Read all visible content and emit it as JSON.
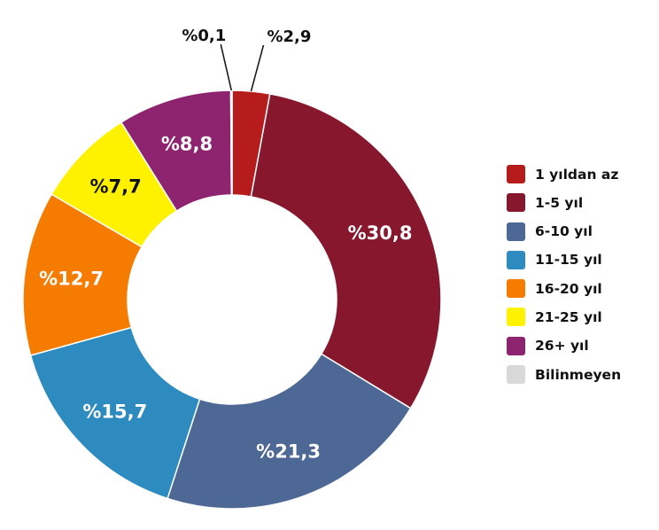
{
  "chart_data": {
    "type": "pie",
    "variant": "donut",
    "legend_position": "right",
    "series": [
      {
        "name": "1 yıldan az",
        "value": 2.9,
        "label": "%2,9",
        "color": "#B71C1C",
        "label_color": "#111111",
        "label_placement": "outside"
      },
      {
        "name": "1-5 yıl",
        "value": 30.8,
        "label": "%30,8",
        "color": "#86172D",
        "label_color": "#FFFFFF",
        "label_placement": "inside"
      },
      {
        "name": "6-10 yıl",
        "value": 21.3,
        "label": "%21,3",
        "color": "#4E6896",
        "label_color": "#FFFFFF",
        "label_placement": "inside"
      },
      {
        "name": "11-15 yıl",
        "value": 15.7,
        "label": "%15,7",
        "color": "#2E8BC0",
        "label_color": "#FFFFFF",
        "label_placement": "inside"
      },
      {
        "name": "16-20 yıl",
        "value": 12.7,
        "label": "%12,7",
        "color": "#F57C00",
        "label_color": "#FFFFFF",
        "label_placement": "inside"
      },
      {
        "name": "21-25 yıl",
        "value": 7.7,
        "label": "%7,7",
        "color": "#FFF200",
        "label_color": "#111111",
        "label_placement": "inside"
      },
      {
        "name": "26+ yıl",
        "value": 8.8,
        "label": "%8,8",
        "color": "#8E2470",
        "label_color": "#FFFFFF",
        "label_placement": "inside"
      },
      {
        "name": "Bilinmeyen",
        "value": 0.1,
        "label": "%0,1",
        "color": "#D9D9D9",
        "label_color": "#111111",
        "label_placement": "outside"
      }
    ]
  }
}
